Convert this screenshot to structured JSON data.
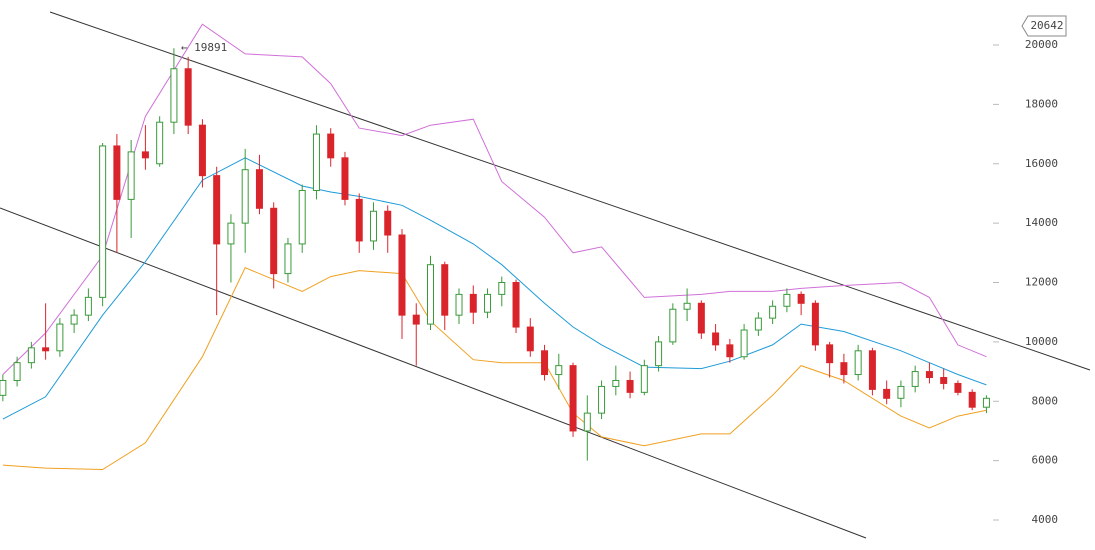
{
  "chart_data": {
    "type": "candlestick",
    "xlim": [
      -0.2,
      69.6
    ],
    "ylim": [
      2990,
      21516
    ],
    "yticks": [
      4000,
      6000,
      8000,
      10000,
      12000,
      14000,
      16000,
      18000,
      20000
    ],
    "up_color": "#3a9a3a",
    "down_color": "#d9242b",
    "x": [
      0,
      1,
      2,
      3,
      4,
      5,
      6,
      7,
      8,
      9,
      10,
      11,
      12,
      13,
      14,
      15,
      16,
      17,
      18,
      19,
      20,
      21,
      22,
      23,
      24,
      25,
      26,
      27,
      28,
      29,
      30,
      31,
      32,
      33,
      34,
      35,
      36,
      37,
      38,
      39,
      40,
      41,
      42,
      43,
      44,
      45,
      46,
      47,
      48,
      49,
      50,
      51,
      52,
      53,
      54,
      55,
      56,
      57,
      58,
      59,
      60,
      61,
      62,
      63,
      64,
      65,
      66,
      67,
      68,
      69
    ],
    "open": [
      8200,
      8700,
      9300,
      9800,
      9700,
      10600,
      10900,
      11500,
      16600,
      14800,
      16400,
      16000,
      17400,
      19200,
      17300,
      15600,
      13300,
      14000,
      15800,
      14500,
      12300,
      13300,
      15100,
      17000,
      16200,
      14800,
      13400,
      14400,
      13600,
      10900,
      10600,
      12600,
      10900,
      11600,
      11000,
      11600,
      12000,
      10500,
      9700,
      8900,
      9200,
      7000,
      7600,
      8500,
      8700,
      8300,
      9200,
      10000,
      11100,
      11300,
      10300,
      9900,
      9500,
      10400,
      10800,
      11200,
      11600,
      11300,
      9900,
      9300,
      8900,
      9700,
      8400,
      8100,
      8500,
      9000,
      8800,
      8600,
      8300,
      7800
    ],
    "high": [
      8900,
      9500,
      10000,
      11300,
      10800,
      11100,
      11800,
      16700,
      17000,
      16800,
      17300,
      17600,
      19891,
      19600,
      17500,
      15900,
      14300,
      16500,
      16300,
      14700,
      13500,
      15300,
      17300,
      17200,
      16400,
      15000,
      14700,
      14600,
      13800,
      11300,
      12900,
      12700,
      11800,
      11900,
      11800,
      12200,
      12100,
      10800,
      9900,
      9600,
      9300,
      8200,
      8700,
      9200,
      9000,
      9400,
      10200,
      11300,
      11800,
      11400,
      10600,
      10100,
      10600,
      11000,
      11400,
      11800,
      11700,
      11400,
      10000,
      9600,
      9900,
      9800,
      8700,
      8700,
      9200,
      9300,
      9100,
      8700,
      8400,
      8200
    ],
    "low": [
      8000,
      8500,
      9100,
      9400,
      9500,
      10300,
      10700,
      11200,
      13000,
      13500,
      15800,
      15900,
      17000,
      17000,
      15200,
      10900,
      12000,
      13000,
      14300,
      11800,
      12000,
      13000,
      14800,
      15900,
      14600,
      13000,
      13100,
      13000,
      10100,
      9200,
      10400,
      10400,
      10600,
      10600,
      10800,
      11200,
      10300,
      9500,
      8700,
      8400,
      6800,
      6000,
      7400,
      8200,
      8100,
      8200,
      9000,
      9900,
      10700,
      10100,
      9700,
      9300,
      9400,
      10200,
      10600,
      11000,
      10900,
      9700,
      8800,
      8600,
      8700,
      8200,
      7900,
      7800,
      8300,
      8600,
      8400,
      8200,
      7700,
      7600
    ],
    "close": [
      8700,
      9300,
      9800,
      9700,
      10600,
      10900,
      11500,
      16600,
      14800,
      16400,
      16200,
      17400,
      19200,
      17300,
      15600,
      13300,
      14000,
      15800,
      14500,
      12300,
      13300,
      15100,
      17000,
      16200,
      14800,
      13400,
      14400,
      13600,
      10900,
      10600,
      12600,
      10900,
      11600,
      11000,
      11600,
      12000,
      10500,
      9700,
      8900,
      9200,
      7000,
      7600,
      8500,
      8700,
      8300,
      9200,
      10000,
      11100,
      11300,
      10300,
      9900,
      9500,
      10400,
      10800,
      11200,
      11600,
      11300,
      9900,
      9300,
      8900,
      9700,
      8400,
      8100,
      8500,
      9000,
      8800,
      8600,
      8300,
      7800,
      8100
    ],
    "series": [
      {
        "color": "#d070d8",
        "x": [
          0,
          3,
          7,
          10,
          14,
          17,
          21,
          23,
          25,
          28,
          30,
          33,
          35,
          38,
          40,
          42,
          45,
          49,
          51,
          54,
          56,
          59,
          63,
          65,
          67,
          69
        ],
        "values": [
          8900,
          10300,
          12900,
          17600,
          20700,
          19700,
          19600,
          18700,
          17200,
          16950,
          17300,
          17500,
          15400,
          14200,
          13000,
          13200,
          11500,
          11600,
          11700,
          11700,
          11800,
          11900,
          12000,
          11500,
          9900,
          9500
        ]
      },
      {
        "color": "#1e9bd7",
        "x": [
          0,
          3,
          7,
          10,
          14,
          17,
          21,
          23,
          25,
          28,
          30,
          33,
          35,
          38,
          40,
          42,
          45,
          49,
          51,
          54,
          56,
          59,
          63,
          65,
          67,
          69
        ],
        "values": [
          7400,
          8150,
          10900,
          12700,
          15450,
          16200,
          15250,
          15050,
          14900,
          14600,
          14100,
          13300,
          12600,
          11300,
          10500,
          9900,
          9150,
          9100,
          9350,
          9900,
          10600,
          10350,
          9700,
          9300,
          8900,
          8550
        ]
      },
      {
        "color": "#f0a020",
        "x": [
          0,
          3,
          7,
          10,
          14,
          17,
          21,
          23,
          25,
          28,
          30,
          33,
          35,
          38,
          40,
          42,
          45,
          49,
          51,
          54,
          56,
          59,
          63,
          65,
          67,
          69
        ],
        "values": [
          5850,
          5750,
          5700,
          6600,
          9500,
          12500,
          11700,
          12200,
          12400,
          12300,
          10700,
          9400,
          9300,
          9300,
          7600,
          6800,
          6500,
          6900,
          6900,
          8200,
          9200,
          8700,
          7500,
          7100,
          7500,
          7700
        ]
      }
    ],
    "max_marker": {
      "value": 19891,
      "label": "← 19891"
    },
    "price_marker": 20642
  }
}
